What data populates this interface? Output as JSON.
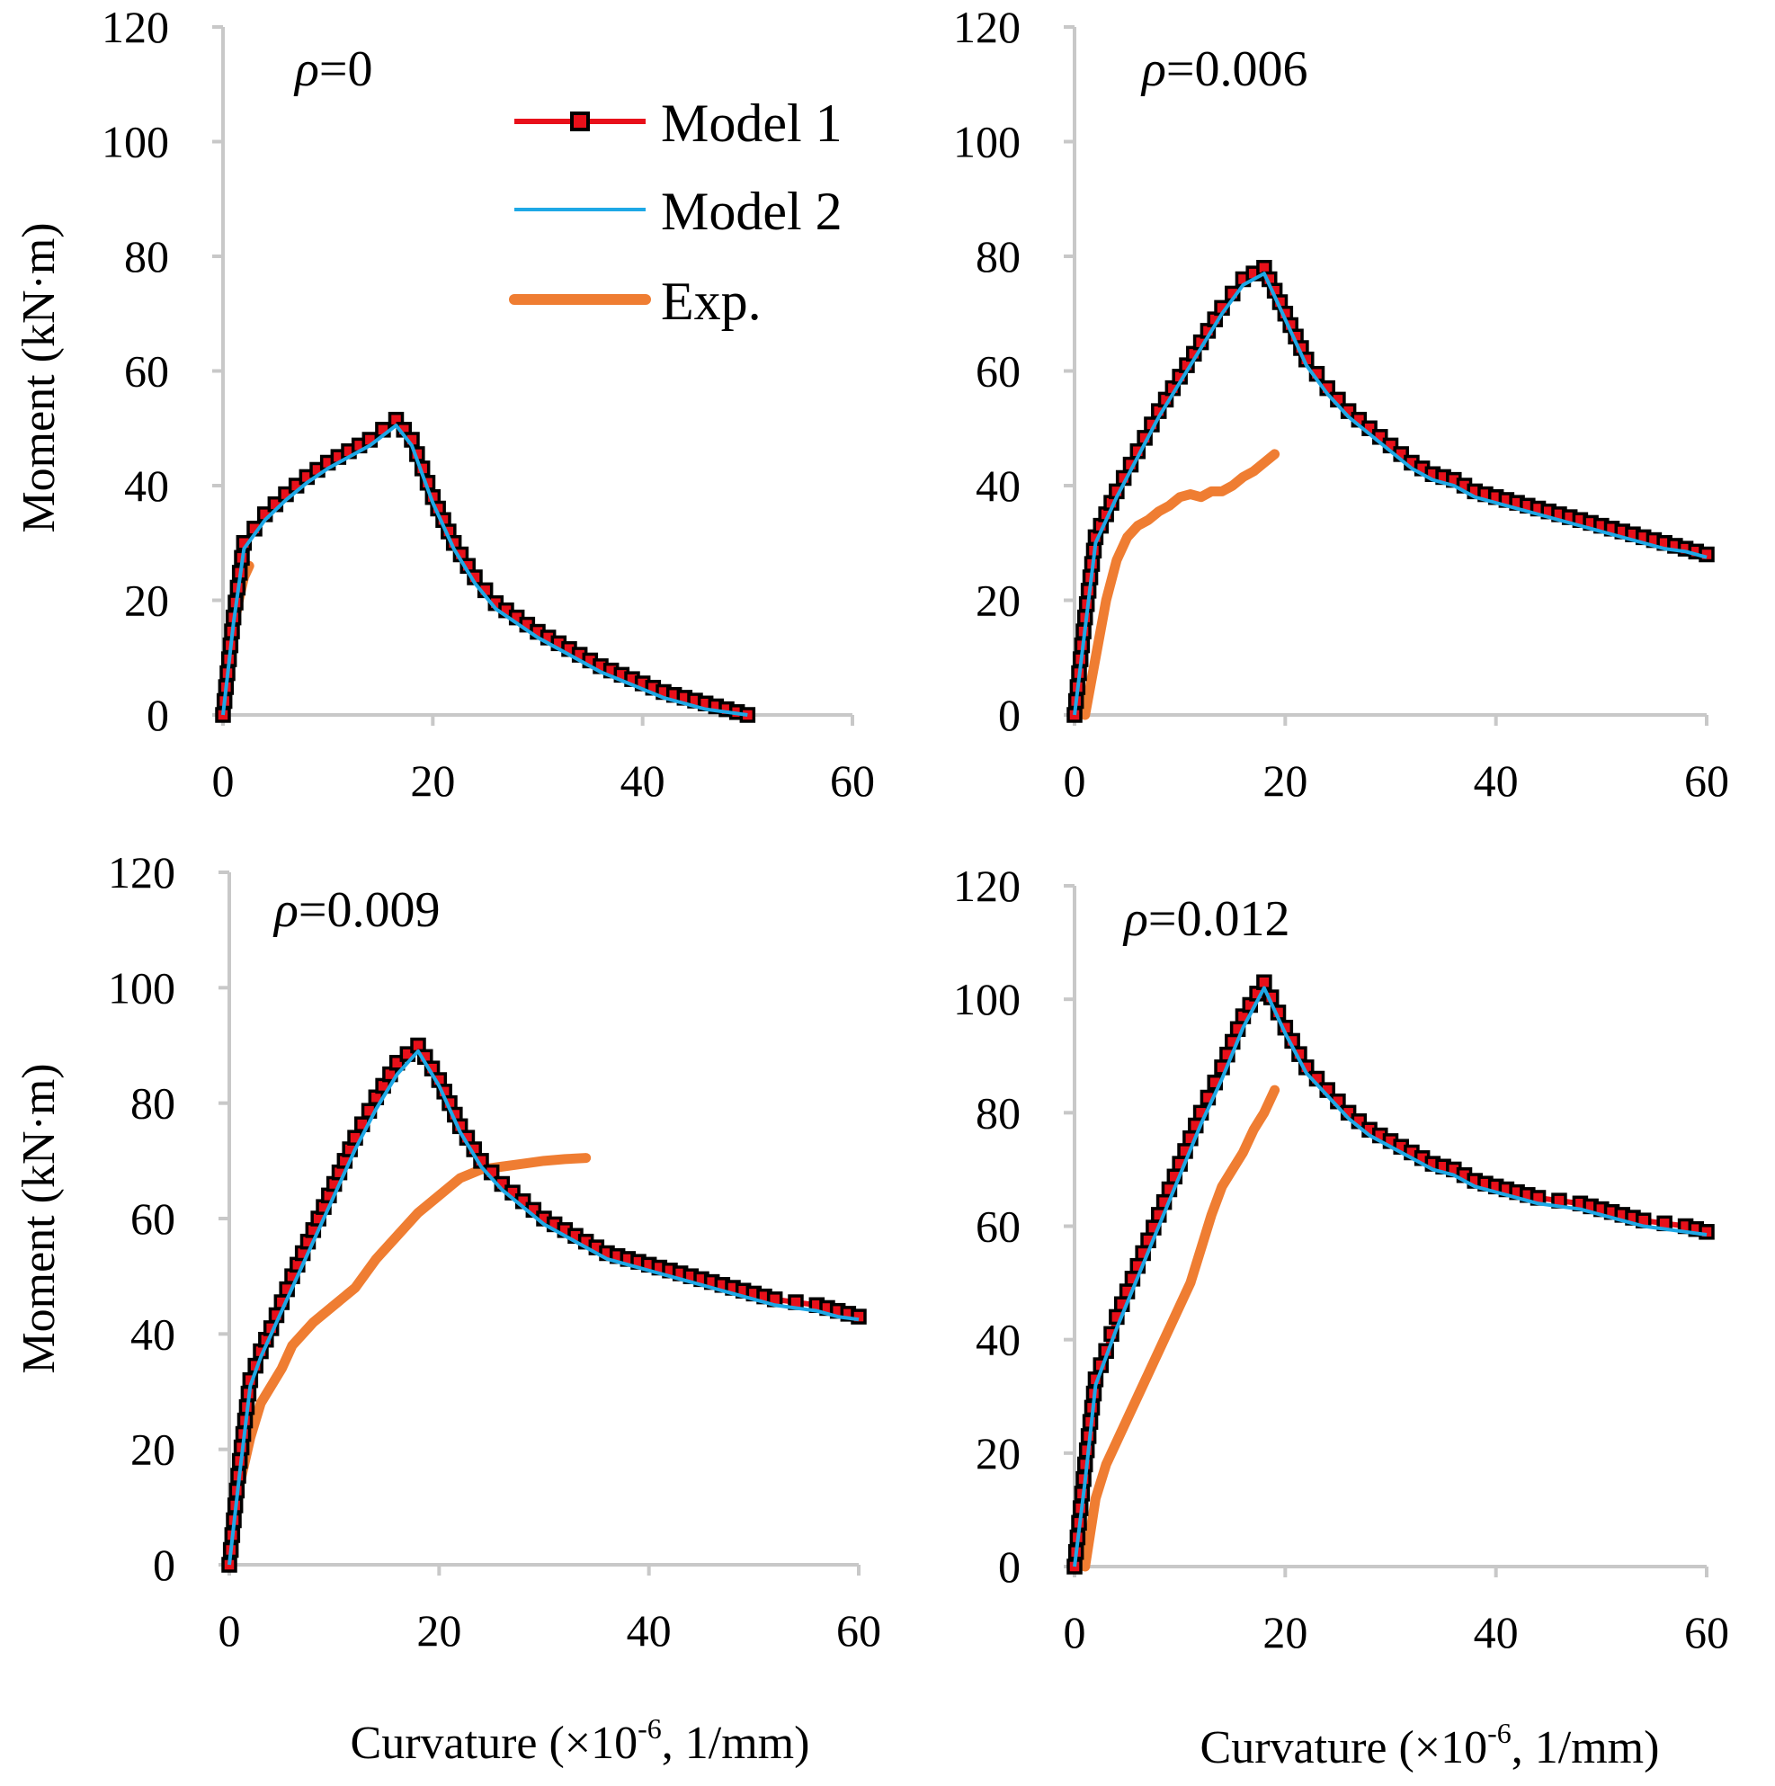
{
  "y_axis_label": "Moment (kN·m)",
  "x_axis_label": "Curvature (×10",
  "x_axis_label_exp": "-6",
  "x_axis_label_tail": ", 1/mm)",
  "legend": {
    "placement": "upper-right of top-left panel",
    "entries": [
      {
        "key": "model1",
        "label": "Model 1"
      },
      {
        "key": "model2",
        "label": "Model 2"
      },
      {
        "key": "exp",
        "label": "Exp."
      }
    ]
  },
  "colors": {
    "model1": "#e8101a",
    "model1_marker": "#000000",
    "model2": "#1ea8e6",
    "exp": "#ef7d32",
    "axis": "#c8c8c8"
  },
  "chart_data": [
    {
      "type": "line",
      "annotation_symbol": "ρ",
      "annotation_value": "=0",
      "xlim": [
        0,
        60
      ],
      "ylim": [
        0,
        120
      ],
      "xticks": [
        0,
        20,
        40,
        60
      ],
      "yticks": [
        0,
        20,
        40,
        60,
        80,
        100,
        120
      ],
      "grid": false,
      "series": [
        {
          "key": "model1",
          "x": [
            0,
            1,
            2,
            4,
            6,
            8,
            10,
            12,
            14,
            16.5,
            18,
            20,
            22,
            24,
            26,
            28,
            30,
            32,
            34,
            36,
            38,
            40,
            42,
            44,
            46,
            48,
            50
          ],
          "y": [
            0,
            17,
            30,
            35,
            38.5,
            41.5,
            44,
            46,
            48,
            51.5,
            48,
            38,
            30,
            24,
            19.5,
            17,
            14.5,
            12.5,
            10.5,
            8.5,
            7,
            5.5,
            4,
            3,
            2,
            1,
            0
          ]
        },
        {
          "key": "model2",
          "x": [
            0,
            1,
            2,
            4,
            6,
            8,
            10,
            12,
            14,
            16.5,
            18,
            20,
            22,
            24,
            26,
            28,
            30,
            32,
            34,
            36,
            38,
            40,
            42,
            44,
            46,
            48,
            50
          ],
          "y": [
            0,
            16,
            29,
            34,
            37.5,
            40.5,
            43,
            45,
            47,
            50.5,
            47,
            37,
            29,
            23,
            18.5,
            16,
            13.5,
            11.5,
            9.5,
            7.5,
            6,
            4.5,
            3,
            2,
            1,
            0.5,
            0
          ]
        },
        {
          "key": "exp",
          "x": [
            0,
            0.5,
            1,
            1.5,
            2,
            2.5
          ],
          "y": [
            0,
            8,
            15,
            20,
            24,
            26
          ]
        }
      ]
    },
    {
      "type": "line",
      "annotation_symbol": "ρ",
      "annotation_value": "=0.006",
      "xlim": [
        0,
        60
      ],
      "ylim": [
        0,
        120
      ],
      "xticks": [
        0,
        20,
        40,
        60
      ],
      "yticks": [
        0,
        20,
        40,
        60,
        80,
        100,
        120
      ],
      "grid": false,
      "series": [
        {
          "key": "model1",
          "x": [
            0,
            1,
            2,
            3,
            4,
            6,
            8,
            10,
            12,
            14,
            16,
            18,
            20,
            22,
            24,
            26,
            28,
            30,
            32,
            34,
            36,
            38,
            40,
            42,
            44,
            46,
            48,
            50,
            52,
            54,
            56,
            58,
            60
          ],
          "y": [
            0,
            17,
            31,
            35,
            39,
            46,
            53,
            59,
            65,
            71,
            76,
            78,
            70,
            62,
            57,
            53,
            50,
            47,
            44,
            42,
            41,
            39,
            38,
            37,
            36,
            35,
            34,
            33,
            32,
            31,
            30,
            29,
            28
          ]
        },
        {
          "key": "model2",
          "x": [
            0,
            1,
            2,
            3,
            4,
            6,
            8,
            10,
            12,
            14,
            16,
            18,
            20,
            22,
            24,
            26,
            28,
            30,
            32,
            34,
            36,
            38,
            40,
            42,
            44,
            46,
            48,
            50,
            52,
            54,
            56,
            58,
            60
          ],
          "y": [
            0,
            15,
            30,
            34,
            38,
            45,
            52,
            58,
            64,
            70,
            75,
            77,
            69,
            61,
            56,
            52,
            49,
            46,
            43,
            41,
            40,
            38,
            37,
            36,
            35,
            34,
            33,
            32,
            31,
            30,
            29,
            28.5,
            27.5
          ]
        },
        {
          "key": "exp",
          "x": [
            1,
            2,
            3,
            4,
            5,
            6,
            7,
            8,
            9,
            10,
            11,
            12,
            13,
            14,
            15,
            16,
            17,
            18,
            19
          ],
          "y": [
            0,
            10,
            20,
            27,
            31,
            33,
            34,
            35.5,
            36.5,
            38,
            38.5,
            38,
            39,
            39,
            40,
            41.5,
            42.5,
            44,
            45.5
          ]
        }
      ]
    },
    {
      "type": "line",
      "annotation_symbol": "ρ",
      "annotation_value": "=0.009",
      "xlim": [
        0,
        60
      ],
      "ylim": [
        0,
        120
      ],
      "xticks": [
        0,
        20,
        40,
        60
      ],
      "yticks": [
        0,
        20,
        40,
        60,
        80,
        100,
        120
      ],
      "grid": false,
      "series": [
        {
          "key": "model1",
          "x": [
            0,
            1,
            2,
            3,
            4,
            6,
            8,
            10,
            12,
            14,
            16,
            18,
            20,
            22,
            24,
            26,
            28,
            30,
            32,
            34,
            36,
            38,
            40,
            42,
            44,
            46,
            48,
            50,
            52,
            54,
            56,
            58,
            60
          ],
          "y": [
            0,
            18,
            32,
            37,
            41,
            50,
            58,
            66,
            74,
            81,
            87,
            90,
            84,
            76,
            70,
            66,
            63,
            60,
            58,
            56,
            54,
            53,
            52,
            51,
            50,
            49,
            48,
            47,
            46,
            45.5,
            45,
            44,
            43
          ]
        },
        {
          "key": "model2",
          "x": [
            0,
            1,
            2,
            3,
            4,
            6,
            8,
            10,
            12,
            14,
            16,
            18,
            20,
            22,
            24,
            26,
            28,
            30,
            32,
            34,
            36,
            38,
            40,
            42,
            44,
            46,
            48,
            50,
            52,
            54,
            56,
            58,
            60
          ],
          "y": [
            0,
            16,
            31,
            36,
            40,
            48,
            56,
            64,
            72,
            79,
            85,
            89,
            83,
            75,
            69,
            65,
            62,
            59,
            57,
            55,
            53,
            52,
            51,
            50,
            49,
            48,
            47,
            46,
            45,
            44.5,
            44,
            43,
            42.5
          ]
        },
        {
          "key": "exp",
          "x": [
            0,
            1,
            2,
            3,
            4,
            5,
            6,
            8,
            10,
            12,
            14,
            16,
            18,
            20,
            22,
            24,
            26,
            28,
            30,
            32,
            34
          ],
          "y": [
            0,
            14,
            22,
            28,
            31,
            34,
            38,
            42,
            45,
            48,
            53,
            57,
            61,
            64,
            67,
            68.5,
            69,
            69.5,
            70,
            70.3,
            70.5
          ]
        }
      ]
    },
    {
      "type": "line",
      "annotation_symbol": "ρ",
      "annotation_value": "=0.012",
      "xlim": [
        0,
        60
      ],
      "ylim": [
        0,
        120
      ],
      "xticks": [
        0,
        20,
        40,
        60
      ],
      "yticks": [
        0,
        20,
        40,
        60,
        80,
        100,
        120
      ],
      "grid": false,
      "series": [
        {
          "key": "model1",
          "x": [
            0,
            1,
            2,
            3,
            4,
            6,
            8,
            10,
            12,
            14,
            16,
            18,
            20,
            22,
            24,
            26,
            28,
            30,
            32,
            34,
            36,
            38,
            40,
            42,
            44,
            46,
            48,
            50,
            52,
            54,
            56,
            58,
            60
          ],
          "y": [
            0,
            18,
            33,
            38,
            44,
            53,
            62,
            71,
            80,
            88,
            97,
            103,
            95,
            88,
            84,
            80,
            77,
            75,
            73,
            71,
            70,
            68,
            67,
            66,
            65,
            64.5,
            64,
            63,
            62,
            61,
            60.5,
            60,
            59
          ]
        },
        {
          "key": "model2",
          "x": [
            0,
            1,
            2,
            3,
            4,
            6,
            8,
            10,
            12,
            14,
            16,
            18,
            20,
            22,
            24,
            26,
            28,
            30,
            32,
            34,
            36,
            38,
            40,
            42,
            44,
            46,
            48,
            50,
            52,
            54,
            56,
            58,
            60
          ],
          "y": [
            0,
            15,
            32,
            37,
            42,
            51,
            60,
            69,
            78,
            86,
            95,
            102,
            94,
            87,
            83,
            79,
            76,
            74,
            72,
            70,
            69,
            67,
            66,
            65,
            64,
            63.5,
            63,
            62,
            61,
            60,
            59.5,
            59,
            58.5
          ]
        },
        {
          "key": "exp",
          "x": [
            1,
            2,
            3,
            4,
            5,
            6,
            7,
            8,
            9,
            10,
            11,
            12,
            13,
            14,
            15,
            16,
            17,
            18,
            19
          ],
          "y": [
            0,
            12,
            18,
            22,
            26,
            30,
            34,
            38,
            42,
            46,
            50,
            56,
            62,
            67,
            70,
            73,
            77,
            80,
            84
          ]
        }
      ]
    }
  ]
}
